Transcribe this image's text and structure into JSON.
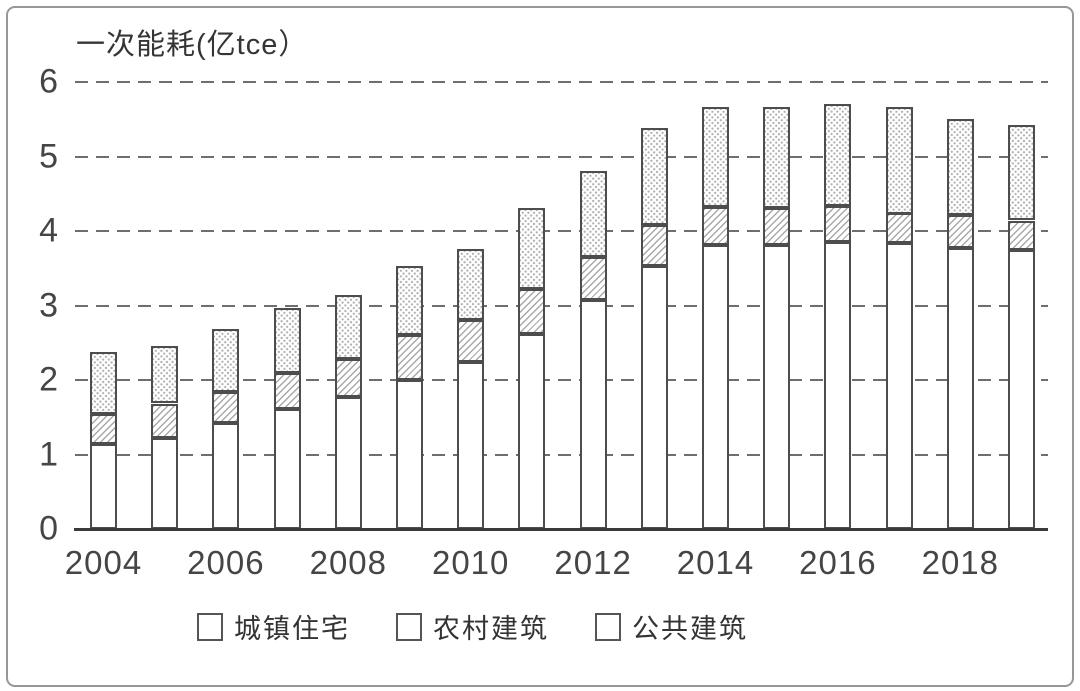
{
  "frame": {
    "type": "chart-image"
  },
  "chart_data": {
    "type": "bar",
    "stacked": true,
    "title": "一次能耗(亿tce）",
    "xlabel": "",
    "ylabel": "一次能耗(亿tce）",
    "categories": [
      "2004",
      "2005",
      "2006",
      "2007",
      "2008",
      "2009",
      "2010",
      "2011",
      "2012",
      "2013",
      "2014",
      "2015",
      "2016",
      "2017",
      "2018",
      "2019"
    ],
    "x_tick_labels": [
      "2004",
      "2006",
      "2008",
      "2010",
      "2012",
      "2014",
      "2016",
      "2018"
    ],
    "y_ticks": [
      0,
      1,
      2,
      3,
      4,
      5,
      6
    ],
    "ylim": [
      0,
      6
    ],
    "grid": "horizontal-dashed",
    "legend_position": "bottom",
    "series": [
      {
        "name": "城镇住宅",
        "pattern": "plain",
        "values": [
          1.14,
          1.22,
          1.42,
          1.61,
          1.77,
          2.0,
          2.24,
          2.62,
          3.07,
          3.53,
          3.81,
          3.81,
          3.85,
          3.84,
          3.77,
          3.75
        ]
      },
      {
        "name": "农村建筑",
        "pattern": "hatch",
        "values": [
          0.4,
          0.46,
          0.42,
          0.48,
          0.51,
          0.6,
          0.57,
          0.6,
          0.58,
          0.55,
          0.51,
          0.5,
          0.48,
          0.4,
          0.44,
          0.39
        ]
      },
      {
        "name": "公共建筑",
        "pattern": "dots",
        "values": [
          0.83,
          0.77,
          0.84,
          0.87,
          0.86,
          0.93,
          0.95,
          1.09,
          1.16,
          1.3,
          1.34,
          1.35,
          1.37,
          1.43,
          1.29,
          1.28
        ]
      }
    ],
    "stack_totals": [
      2.37,
      2.45,
      2.68,
      2.96,
      3.14,
      3.53,
      3.76,
      4.31,
      4.81,
      5.38,
      5.66,
      5.66,
      5.7,
      5.67,
      5.5,
      5.42
    ]
  },
  "colors": {
    "bar_border": "#4d4d4d",
    "hatch_line": "#a9a9a9",
    "dot_fill": "#b0b0b0",
    "grid_line": "#6e6e6e",
    "axis_text": "#454545",
    "frame_border": "#979797",
    "background": "#ffffff"
  }
}
